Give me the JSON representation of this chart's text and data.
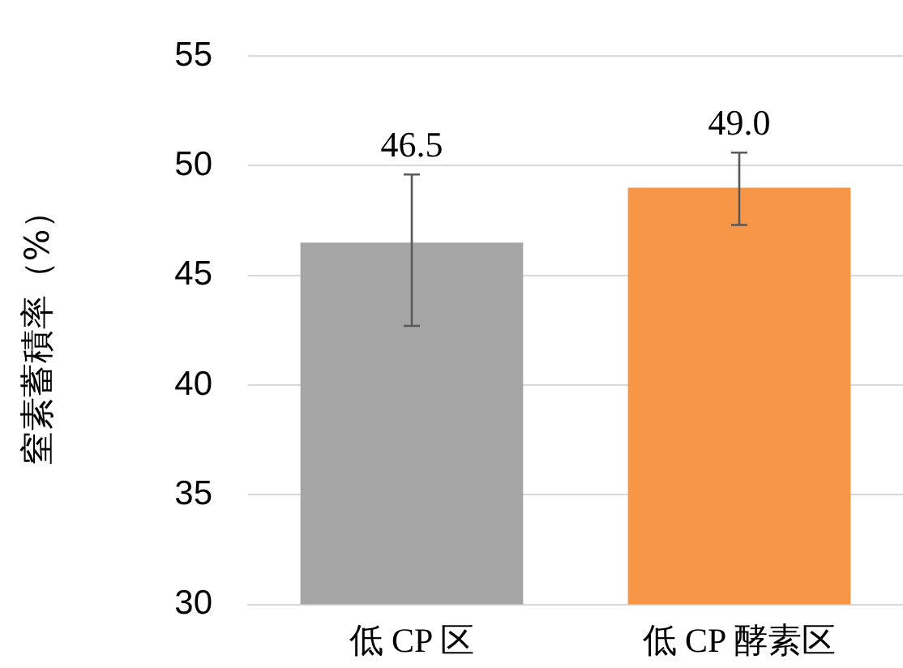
{
  "chart_data": {
    "type": "bar",
    "ylabel": "窒素蓄積率（%）",
    "categories": [
      "低 CP 区",
      "低 CP 酵素区"
    ],
    "values": [
      46.5,
      49.0
    ],
    "colors": [
      "#a5a5a5",
      "#f79646"
    ],
    "errors": [
      [
        42.7,
        49.6
      ],
      [
        47.3,
        50.6
      ]
    ],
    "value_labels": [
      "46.5",
      "49.0"
    ],
    "ylim": [
      30,
      55
    ],
    "yticks": [
      30,
      35,
      40,
      45,
      50,
      55
    ],
    "grid": "y",
    "legend": false
  }
}
